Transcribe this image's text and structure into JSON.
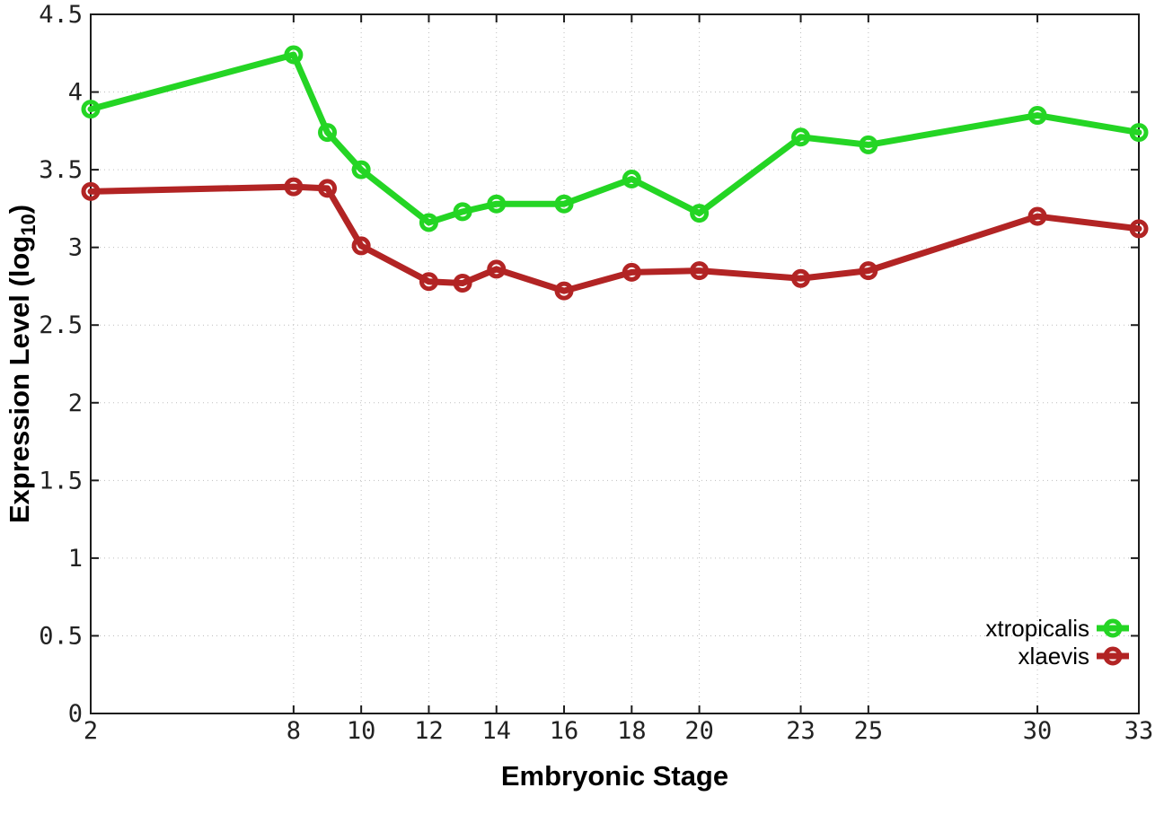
{
  "figure": {
    "background": "#ffffff",
    "frame_color": "#1c1c1c",
    "grid_color": "#bdbdbd",
    "tick_label_color": "#222222",
    "legend_text_color": "#000000"
  },
  "labels": {
    "xlabel": "Embryonic Stage",
    "ylabel_main": "Expression Level (log",
    "ylabel_sub": "10",
    "ylabel_close": ")"
  },
  "chart_data": {
    "type": "line",
    "title": "",
    "xlabel": "Embryonic Stage",
    "ylabel": "Expression Level (log10)",
    "x": [
      2,
      8,
      9,
      10,
      12,
      13,
      14,
      16,
      18,
      20,
      23,
      25,
      30,
      33
    ],
    "series": [
      {
        "name": "xtropicalis",
        "color": "#24d524",
        "values": [
          3.89,
          4.24,
          3.74,
          3.5,
          3.16,
          3.23,
          3.28,
          3.28,
          3.44,
          3.22,
          3.71,
          3.66,
          3.85,
          3.74
        ]
      },
      {
        "name": "xlaevis",
        "color": "#b22424",
        "values": [
          3.36,
          3.39,
          3.38,
          3.01,
          2.78,
          2.77,
          2.86,
          2.72,
          2.84,
          2.85,
          2.8,
          2.85,
          3.2,
          3.12
        ]
      }
    ],
    "x_ticks": [
      2,
      8,
      10,
      12,
      14,
      16,
      18,
      20,
      23,
      25,
      30,
      33
    ],
    "y_ticks": [
      0,
      0.5,
      1,
      1.5,
      2,
      2.5,
      3,
      3.5,
      4,
      4.5
    ],
    "xlim": [
      2,
      33
    ],
    "ylim": [
      0,
      4.5
    ],
    "grid": true,
    "marker": "open-circle",
    "legend_position": "inside bottom-right"
  }
}
